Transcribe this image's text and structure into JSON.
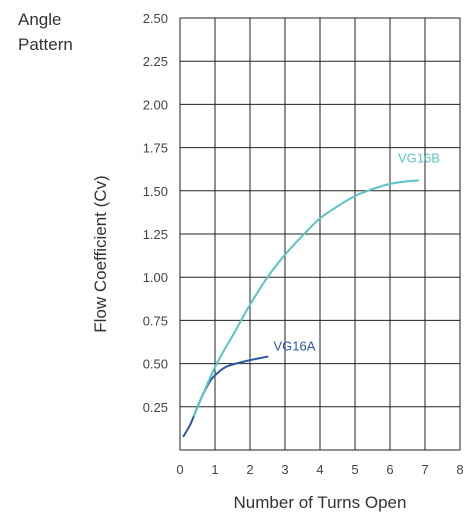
{
  "corner_label": {
    "line1": "Angle",
    "line2": "Pattern"
  },
  "chart_data": {
    "type": "line",
    "title": "",
    "xlabel": "Number of Turns Open",
    "ylabel": "Flow Coefficient (Cv)",
    "xlim": [
      0,
      8
    ],
    "ylim": [
      0,
      2.5
    ],
    "x_ticks": [
      0,
      1,
      2,
      3,
      4,
      5,
      6,
      7,
      8
    ],
    "y_ticks": [
      0.25,
      0.5,
      0.75,
      1.0,
      1.25,
      1.5,
      1.75,
      2.0,
      2.25,
      2.5
    ],
    "y_tick_labels": [
      "0.25",
      "0.50",
      "0.75",
      "1.00",
      "1.25",
      "1.50",
      "1.75",
      "2.00",
      "2.25",
      "2.50"
    ],
    "grid": true,
    "legend": "inline labels at line ends",
    "series": [
      {
        "name": "VG16A",
        "color": "#2b58a6",
        "x": [
          0.1,
          0.3,
          0.5,
          0.7,
          0.9,
          1.1,
          1.3,
          1.6,
          2.0,
          2.5
        ],
        "y": [
          0.08,
          0.15,
          0.25,
          0.34,
          0.41,
          0.45,
          0.48,
          0.5,
          0.52,
          0.54
        ]
      },
      {
        "name": "VG16B",
        "color": "#58c4c4",
        "x": [
          0.4,
          1.0,
          1.5,
          2.0,
          2.5,
          3.0,
          3.5,
          4.0,
          4.5,
          5.0,
          5.5,
          6.0,
          6.5,
          6.8
        ],
        "y": [
          0.2,
          0.48,
          0.66,
          0.84,
          1.0,
          1.13,
          1.24,
          1.34,
          1.41,
          1.47,
          1.51,
          1.54,
          1.555,
          1.56
        ]
      }
    ]
  }
}
